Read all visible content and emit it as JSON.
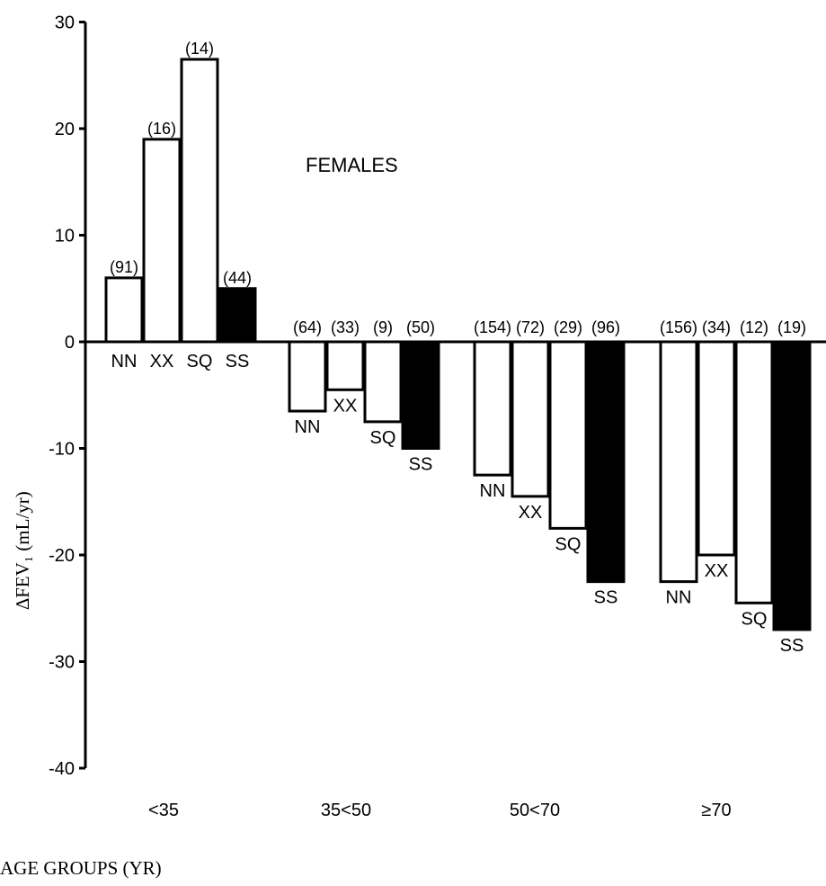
{
  "chart_data": {
    "type": "bar",
    "annotation": "FEMALES",
    "ylabel": "∆FEV₁ (mL/yr)",
    "xlabel": "AGE GROUPS (YR)",
    "ylim": [
      -40,
      30
    ],
    "yticks": [
      30,
      20,
      10,
      0,
      -10,
      -20,
      -30,
      -40
    ],
    "yticklabels": [
      "30",
      "20",
      "10",
      "0",
      "-10",
      "-20",
      "-30",
      "-40"
    ],
    "colors": {
      "open": "#ffffff",
      "filled": "#000000",
      "stroke": "#000000"
    },
    "groups": [
      {
        "label": "<35",
        "bars": [
          {
            "code": "NN",
            "value": 6,
            "n": "(91)",
            "fill": "open"
          },
          {
            "code": "XX",
            "value": 19,
            "n": "(16)",
            "fill": "open"
          },
          {
            "code": "SQ",
            "value": 26.5,
            "n": "(14)",
            "fill": "open"
          },
          {
            "code": "SS",
            "value": 5,
            "n": "(44)",
            "fill": "filled"
          }
        ]
      },
      {
        "label": "35<50",
        "bars": [
          {
            "code": "NN",
            "value": -6.5,
            "n": "(64)",
            "fill": "open"
          },
          {
            "code": "XX",
            "value": -4.5,
            "n": "(33)",
            "fill": "open"
          },
          {
            "code": "SQ",
            "value": -7.5,
            "n": "(9)",
            "fill": "open"
          },
          {
            "code": "SS",
            "value": -10,
            "n": "(50)",
            "fill": "filled"
          }
        ]
      },
      {
        "label": "50<70",
        "bars": [
          {
            "code": "NN",
            "value": -12.5,
            "n": "(154)",
            "fill": "open"
          },
          {
            "code": "XX",
            "value": -14.5,
            "n": "(72)",
            "fill": "open"
          },
          {
            "code": "SQ",
            "value": -17.5,
            "n": "(29)",
            "fill": "open"
          },
          {
            "code": "SS",
            "value": -22.5,
            "n": "(96)",
            "fill": "filled"
          }
        ]
      },
      {
        "label": "≥70",
        "bars": [
          {
            "code": "NN",
            "value": -22.5,
            "n": "(156)",
            "fill": "open"
          },
          {
            "code": "XX",
            "value": -20,
            "n": "(34)",
            "fill": "open"
          },
          {
            "code": "SQ",
            "value": -24.5,
            "n": "(12)",
            "fill": "open"
          },
          {
            "code": "SS",
            "value": -27,
            "n": "(19)",
            "fill": "filled"
          }
        ]
      }
    ]
  }
}
